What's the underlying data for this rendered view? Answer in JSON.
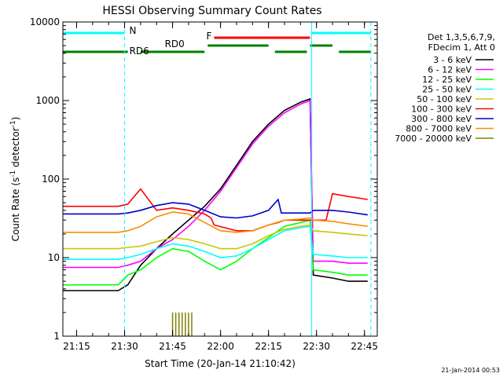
{
  "chart_data": {
    "type": "line",
    "title": "HESSI Observing Summary Count Rates",
    "xlabel": "Start Time (20-Jan-14 21:10:42)",
    "ylabel": "Count Rate (s",
    "ylabel_sup": "-1",
    "ylabel_suffix": " detector",
    "ylabel_sup2": "-1",
    "ylabel_end": ")",
    "yscale": "log",
    "ylim": [
      1,
      10000
    ],
    "xlim": [
      "21:10:42",
      "22:49:00"
    ],
    "x_ticks": [
      "21:15",
      "21:30",
      "21:45",
      "22:00",
      "22:15",
      "22:30",
      "22:45"
    ],
    "y_ticks": [
      "1",
      "10",
      "100",
      "1000",
      "10000"
    ],
    "footer": "21-Jan-2014 00:53",
    "legend_header": [
      "Det 1,3,5,6,7,9,",
      "FDecim 1, Att 0"
    ],
    "state_bars": {
      "night": {
        "label": "N",
        "color": "#00ffff",
        "segments": [
          [
            "21:10:42",
            "21:30:00"
          ],
          [
            "22:28:30",
            "22:47:00"
          ]
        ]
      },
      "flare": {
        "label": "F",
        "color": "#ff0000",
        "segments": [
          [
            "21:58:00",
            "22:28:00"
          ]
        ]
      },
      "rd0": {
        "label": "RD0",
        "color": "#008000",
        "segments": [
          [
            "21:35:00",
            "21:55:00"
          ],
          [
            "21:56:00",
            "22:15:00"
          ],
          [
            "22:17:00",
            "22:27:00"
          ],
          [
            "22:28:00",
            "22:35:00"
          ],
          [
            "22:37:00",
            "22:47:00"
          ]
        ]
      },
      "rd6": {
        "label": "RD6",
        "color": "#008000",
        "segments": [
          [
            "21:10:42",
            "21:31:00"
          ]
        ]
      }
    },
    "night_boundaries": [
      "21:10:42",
      "21:30:00",
      "22:28:30",
      "22:47:00"
    ],
    "series": [
      {
        "name": "3 - 6 keV",
        "color": "#000000",
        "x": [
          "21:10:42",
          "21:28",
          "21:31",
          "21:35",
          "21:40",
          "21:45",
          "21:50",
          "21:55",
          "22:00",
          "22:05",
          "22:10",
          "22:15",
          "22:20",
          "22:25",
          "22:28",
          "22:29",
          "22:35",
          "22:40",
          "22:46"
        ],
        "y": [
          3.8,
          3.8,
          4.5,
          8,
          13,
          20,
          30,
          45,
          75,
          150,
          300,
          500,
          750,
          950,
          1050,
          6,
          5.5,
          5,
          5
        ]
      },
      {
        "name": "6 - 12 keV",
        "color": "#ff00ff",
        "x": [
          "21:10:42",
          "21:28",
          "21:31",
          "21:35",
          "21:40",
          "21:45",
          "21:50",
          "21:55",
          "22:00",
          "22:05",
          "22:10",
          "22:15",
          "22:20",
          "22:25",
          "22:28",
          "22:29",
          "22:35",
          "22:40",
          "22:46"
        ],
        "y": [
          7.5,
          7.5,
          8,
          9,
          13,
          17,
          25,
          40,
          70,
          140,
          280,
          470,
          700,
          900,
          1000,
          9,
          9,
          8.5,
          8.5
        ]
      },
      {
        "name": "12 - 25 keV",
        "color": "#00ff00",
        "x": [
          "21:10:42",
          "21:28",
          "21:31",
          "21:35",
          "21:40",
          "21:45",
          "21:50",
          "21:55",
          "22:00",
          "22:05",
          "22:10",
          "22:15",
          "22:20",
          "22:25",
          "22:28",
          "22:29",
          "22:35",
          "22:40",
          "22:46"
        ],
        "y": [
          4.5,
          4.5,
          6,
          7,
          10,
          13,
          12,
          9,
          7,
          9,
          13,
          18,
          25,
          28,
          30,
          7,
          6.5,
          6,
          6
        ]
      },
      {
        "name": "25 - 50 keV",
        "color": "#00ffff",
        "x": [
          "21:10:42",
          "21:28",
          "21:31",
          "21:35",
          "21:40",
          "21:45",
          "21:50",
          "21:55",
          "22:00",
          "22:05",
          "22:10",
          "22:15",
          "22:20",
          "22:25",
          "22:28",
          "22:29",
          "22:35",
          "22:40",
          "22:46"
        ],
        "y": [
          9.5,
          9.5,
          10,
          11,
          13,
          15,
          14,
          12,
          10,
          10.5,
          13,
          17,
          22,
          24,
          25,
          11,
          10.5,
          10,
          10
        ]
      },
      {
        "name": "50 - 100 keV",
        "color": "#c8c800",
        "x": [
          "21:10:42",
          "21:28",
          "21:31",
          "21:35",
          "21:40",
          "21:45",
          "21:50",
          "21:55",
          "22:00",
          "22:05",
          "22:10",
          "22:15",
          "22:20",
          "22:25",
          "22:28",
          "22:29",
          "22:35",
          "22:40",
          "22:46"
        ],
        "y": [
          13,
          13,
          13.5,
          14,
          16,
          18,
          17,
          15,
          13,
          13,
          15,
          19,
          23,
          25,
          26,
          22,
          21,
          20,
          19
        ]
      },
      {
        "name": "100 - 300 keV",
        "color": "#ff0000",
        "x": [
          "21:10:42",
          "21:28",
          "21:31",
          "21:35",
          "21:40",
          "21:45",
          "21:50",
          "21:55",
          "21:57",
          "21:58",
          "22:05",
          "22:10",
          "22:15",
          "22:18",
          "22:20",
          "22:25",
          "22:28",
          "22:29",
          "22:33",
          "22:35",
          "22:40",
          "22:46"
        ],
        "y": [
          45,
          45,
          48,
          75,
          40,
          43,
          40,
          36,
          32,
          26,
          22,
          22,
          26,
          28,
          30,
          30,
          30,
          30,
          30,
          65,
          60,
          55
        ]
      },
      {
        "name": "300 - 800 keV",
        "color": "#0000c8",
        "x": [
          "21:10:42",
          "21:28",
          "21:31",
          "21:35",
          "21:40",
          "21:45",
          "21:50",
          "21:55",
          "22:00",
          "22:05",
          "22:10",
          "22:15",
          "22:18",
          "22:19",
          "22:25",
          "22:28",
          "22:29",
          "22:35",
          "22:40",
          "22:46"
        ],
        "y": [
          36,
          36,
          37,
          40,
          46,
          50,
          48,
          40,
          33,
          32,
          34,
          40,
          55,
          37,
          37,
          37,
          40,
          40,
          38,
          35
        ]
      },
      {
        "name": "800 - 7000 keV",
        "color": "#ff8c00",
        "x": [
          "21:10:42",
          "21:28",
          "21:31",
          "21:35",
          "21:40",
          "21:45",
          "21:50",
          "21:55",
          "22:00",
          "22:05",
          "22:10",
          "22:15",
          "22:20",
          "22:25",
          "22:28",
          "22:29",
          "22:35",
          "22:40",
          "22:46"
        ],
        "y": [
          21,
          21,
          22,
          25,
          33,
          38,
          36,
          28,
          22,
          21,
          22,
          26,
          30,
          31,
          32,
          30,
          29,
          27,
          25
        ]
      },
      {
        "name": "7000 - 20000 keV",
        "color": "#808000",
        "x": [
          "21:45",
          "21:46",
          "21:47",
          "21:48",
          "21:49",
          "21:50",
          "21:51"
        ],
        "y": [
          2,
          2,
          2,
          2,
          2,
          2,
          2
        ]
      }
    ]
  }
}
